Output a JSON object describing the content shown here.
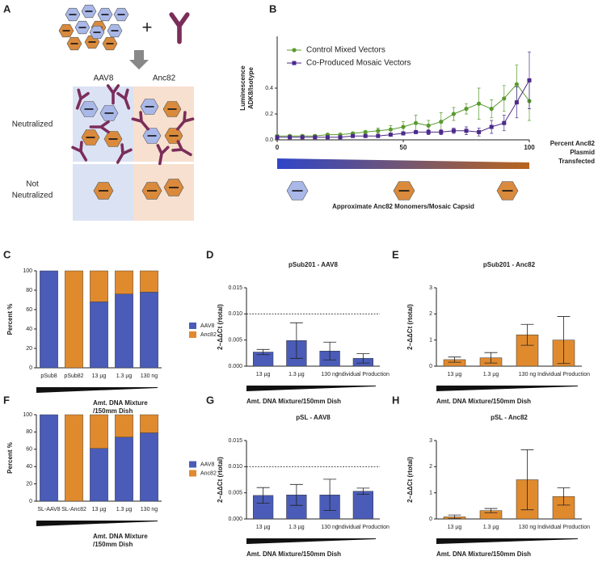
{
  "diagram": {
    "label": "A",
    "plus": "+",
    "columns": [
      "AAV8",
      "Anc82"
    ],
    "rows": [
      [
        "Neutralized"
      ],
      [
        "Not",
        "Neutralized"
      ]
    ]
  },
  "chart_data": [
    {
      "type": "line",
      "label": "B",
      "ylabel": [
        "Luminescence",
        "ADK8/Isotype"
      ],
      "xlabel": [
        "Percent Anc82",
        "Plasmid",
        "Transfected"
      ],
      "annotation": "Approximate Anc82 Monomers/Mosaic Capsid",
      "x": [
        0,
        5,
        10,
        15,
        20,
        25,
        30,
        35,
        40,
        45,
        50,
        55,
        60,
        65,
        70,
        75,
        80,
        85,
        90,
        95,
        100
      ],
      "xlim": [
        0,
        100
      ],
      "xticks": [
        0,
        50,
        100
      ],
      "ylim": [
        0,
        0.8
      ],
      "yticks": [
        {
          "value": 0,
          "label": "0.0"
        },
        0.2,
        0.4
      ],
      "series": [
        {
          "name": "Control Mixed Vectors",
          "color": "#5a9a2e",
          "marker": "circle",
          "values": [
            0.03,
            0.03,
            0.03,
            0.03,
            0.04,
            0.04,
            0.05,
            0.06,
            0.07,
            0.08,
            0.1,
            0.13,
            0.11,
            0.14,
            0.2,
            0.24,
            0.28,
            0.24,
            0.32,
            0.43,
            0.3
          ],
          "errors": [
            0.01,
            0.01,
            0.01,
            0.01,
            0.01,
            0.01,
            0.01,
            0.01,
            0.02,
            0.03,
            0.04,
            0.06,
            0.04,
            0.07,
            0.05,
            0.04,
            0.12,
            0.07,
            0.1,
            0.15,
            0.15
          ]
        },
        {
          "name": "Co-Produced Mosaic Vectors",
          "color": "#4b2a8a",
          "marker": "square",
          "values": [
            0.02,
            0.02,
            0.02,
            0.02,
            0.02,
            0.02,
            0.03,
            0.03,
            0.03,
            0.04,
            0.05,
            0.06,
            0.06,
            0.06,
            0.07,
            0.07,
            0.06,
            0.1,
            0.13,
            0.29,
            0.46
          ],
          "errors": [
            0.01,
            0.01,
            0.01,
            0.01,
            0.01,
            0.01,
            0.01,
            0.01,
            0.01,
            0.01,
            0.01,
            0.01,
            0.02,
            0.02,
            0.02,
            0.03,
            0.03,
            0.05,
            0.06,
            0.12,
            0.22
          ]
        }
      ]
    },
    {
      "type": "stacked_bar",
      "label": "C",
      "ylabel": "Percent %",
      "annotation": [
        "Amt. DNA Mixture",
        "/150mm Dish"
      ],
      "categories": [
        "pSub8",
        "pSub82",
        "13 µg",
        "1.3 µg",
        "130 ng"
      ],
      "ylim": [
        0,
        100
      ],
      "yticks": [
        0,
        20,
        40,
        60,
        80,
        100
      ],
      "series": [
        {
          "name": "AAV8",
          "color": "#4a5cb8",
          "values": [
            100,
            0,
            68,
            76,
            78
          ]
        },
        {
          "name": "Anc82",
          "color": "#e08a2e",
          "values": [
            0,
            100,
            32,
            24,
            22
          ]
        }
      ]
    },
    {
      "type": "bar",
      "label": "D",
      "title": "pSub201 - AAV8",
      "ylabel": "2−ΔΔCt (rtotal)",
      "annotation": [
        "Amt. DNA Mixture/150mm Dish"
      ],
      "categories": [
        "13 µg",
        "1.3 µg",
        "130 ng",
        "Individual Production"
      ],
      "values": [
        0.0027,
        0.0049,
        0.0029,
        0.0015
      ],
      "errors": [
        0.0005,
        0.0034,
        0.0017,
        0.0009
      ],
      "color": "#4a5cb8",
      "reference_line": 0.01,
      "ylim": [
        0,
        0.015
      ],
      "yticks": [
        {
          "value": 0,
          "label": "0.000"
        },
        0.005,
        {
          "value": 0.01,
          "label": "0.010"
        },
        0.015
      ]
    },
    {
      "type": "bar",
      "label": "E",
      "title": "pSub201 - Anc82",
      "ylabel": "2−ΔΔCt (rtotal)",
      "annotation": [
        "Amt. DNA Mixture/150mm Dish"
      ],
      "categories": [
        "13 µg",
        "1.3 µg",
        "130 ng",
        "Individual Production"
      ],
      "values": [
        0.25,
        0.32,
        1.2,
        1.0
      ],
      "errors": [
        0.1,
        0.2,
        0.4,
        0.9
      ],
      "color": "#e08a2e",
      "ylim": [
        0,
        3
      ],
      "yticks": [
        0,
        1,
        2,
        3
      ]
    },
    {
      "type": "stacked_bar",
      "label": "F",
      "ylabel": "Percent %",
      "annotation": [
        "Amt. DNA Mixture",
        "/150mm Dish"
      ],
      "categories": [
        "SL-AAV8",
        "SL-Anc82",
        "13 µg",
        "1.3 µg",
        "130 ng"
      ],
      "ylim": [
        0,
        100
      ],
      "yticks": [
        0,
        20,
        40,
        60,
        80,
        100
      ],
      "series": [
        {
          "name": "AAV8",
          "color": "#4a5cb8",
          "values": [
            100,
            0,
            61,
            74,
            79
          ]
        },
        {
          "name": "Anc82",
          "color": "#e08a2e",
          "values": [
            0,
            100,
            39,
            26,
            21
          ]
        }
      ]
    },
    {
      "type": "bar",
      "label": "G",
      "title": "pSL - AAV8",
      "ylabel": "2−ΔΔCt (rtotal)",
      "annotation": [
        "Amt. DNA Mixture/150mm Dish"
      ],
      "categories": [
        "13 µg",
        "1.3 µg",
        "130 ng",
        "Individual Production"
      ],
      "values": [
        0.0045,
        0.0046,
        0.0046,
        0.0053
      ],
      "errors": [
        0.0015,
        0.002,
        0.003,
        0.0006
      ],
      "color": "#4a5cb8",
      "reference_line": 0.01,
      "ylim": [
        0,
        0.015
      ],
      "yticks": [
        {
          "value": 0,
          "label": "0.000"
        },
        0.005,
        {
          "value": 0.01,
          "label": "0.010"
        },
        0.015
      ]
    },
    {
      "type": "bar",
      "label": "H",
      "title": "pSL - Anc82",
      "ylabel": "2−ΔΔCt (rtotal)",
      "annotation": [
        "Amt. DNA Mixture/150mm Dish"
      ],
      "categories": [
        "13 µg",
        "1.3 µg",
        "130 ng",
        "Individual Production"
      ],
      "values": [
        0.08,
        0.32,
        1.5,
        0.86
      ],
      "errors": [
        0.07,
        0.08,
        1.15,
        0.33
      ],
      "color": "#e08a2e",
      "ylim": [
        0,
        3
      ],
      "yticks": [
        0,
        1,
        2,
        3
      ]
    }
  ]
}
